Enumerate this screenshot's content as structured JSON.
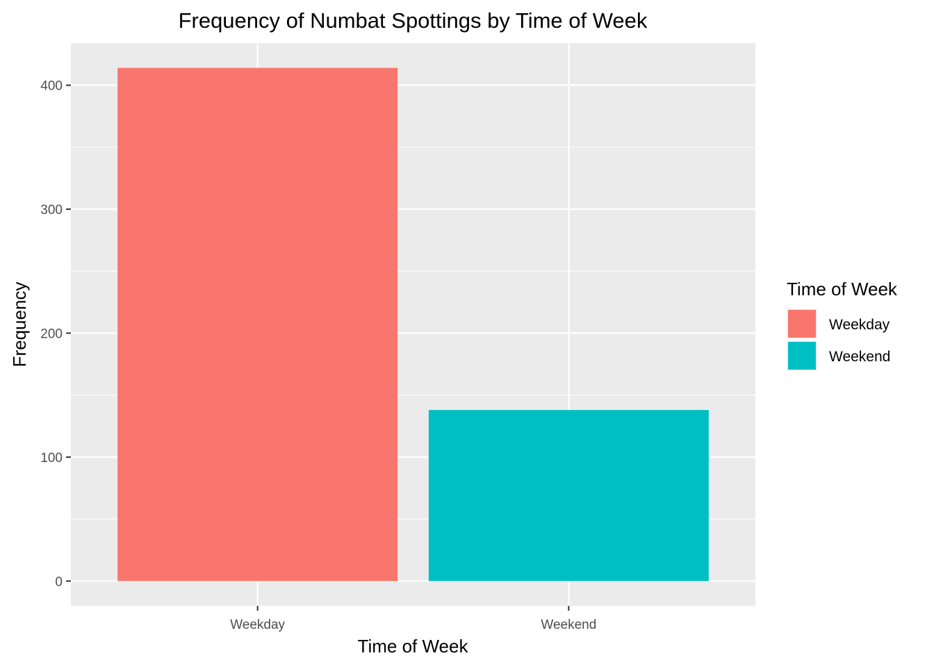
{
  "chart_data": {
    "type": "bar",
    "title": "Frequency of Numbat Spottings by Time of Week",
    "xlabel": "Time of Week",
    "ylabel": "Frequency",
    "categories": [
      "Weekday",
      "Weekend"
    ],
    "values": [
      414,
      138
    ],
    "colors": [
      "#F8766D",
      "#00BFC4"
    ],
    "yticks": [
      0,
      100,
      200,
      300,
      400
    ],
    "ylim": [
      -20,
      434
    ],
    "grid": true,
    "panel_background": "#EBEBEB",
    "legend": {
      "title": "Time of Week",
      "position": "right",
      "entries": [
        "Weekday",
        "Weekend"
      ]
    }
  }
}
